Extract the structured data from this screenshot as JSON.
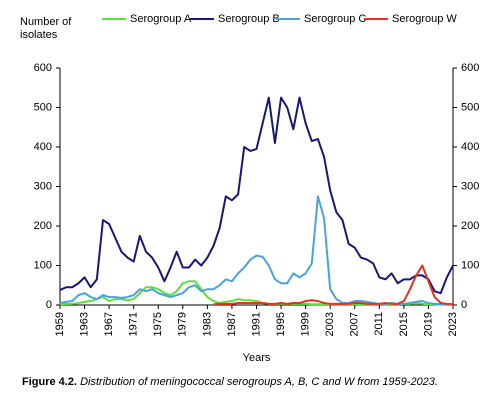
{
  "chart_data": {
    "type": "line",
    "y_label": "Number of isolates",
    "x_label": "Years",
    "caption_label": "Figure 4.2.",
    "caption_text": "Distribution of meningococcal serogroups A, B, C and W from 1959-2023.",
    "x": [
      1959,
      1960,
      1961,
      1962,
      1963,
      1964,
      1965,
      1966,
      1967,
      1968,
      1969,
      1970,
      1971,
      1972,
      1973,
      1974,
      1975,
      1976,
      1977,
      1978,
      1979,
      1980,
      1981,
      1982,
      1983,
      1984,
      1985,
      1986,
      1987,
      1988,
      1989,
      1990,
      1991,
      1992,
      1993,
      1994,
      1995,
      1996,
      1997,
      1998,
      1999,
      2000,
      2001,
      2002,
      2003,
      2004,
      2005,
      2006,
      2007,
      2008,
      2009,
      2010,
      2011,
      2012,
      2013,
      2014,
      2015,
      2016,
      2017,
      2018,
      2019,
      2020,
      2021,
      2022,
      2023
    ],
    "xlim": [
      1959,
      2023
    ],
    "xticks": [
      1959,
      1963,
      1967,
      1971,
      1975,
      1979,
      1983,
      1987,
      1991,
      1995,
      1999,
      2003,
      2007,
      2011,
      2015,
      2019,
      2023
    ],
    "ylim": [
      0,
      600
    ],
    "yticks": [
      0,
      100,
      200,
      300,
      400,
      500,
      600
    ],
    "y2lim": [
      0,
      600
    ],
    "y2ticks": [
      0,
      100,
      200,
      300,
      400,
      500,
      600
    ],
    "series": [
      {
        "name": "Serogroup A",
        "color": "#5ee03c",
        "values": [
          2,
          3,
          3,
          5,
          8,
          10,
          15,
          20,
          10,
          15,
          15,
          12,
          15,
          30,
          45,
          45,
          40,
          30,
          25,
          35,
          55,
          60,
          60,
          40,
          20,
          10,
          5,
          8,
          10,
          15,
          12,
          12,
          10,
          5,
          3,
          3,
          3,
          3,
          3,
          3,
          3,
          2,
          2,
          2,
          2,
          2,
          2,
          2,
          2,
          2,
          2,
          2,
          2,
          2,
          2,
          2,
          3,
          3,
          5,
          3,
          2,
          2,
          1,
          1,
          1
        ]
      },
      {
        "name": "Serogroup B",
        "color": "#17177a",
        "values": [
          38,
          45,
          45,
          55,
          70,
          45,
          65,
          215,
          205,
          170,
          135,
          120,
          110,
          175,
          135,
          120,
          95,
          60,
          95,
          135,
          95,
          95,
          115,
          100,
          120,
          150,
          195,
          275,
          265,
          280,
          400,
          390,
          395,
          460,
          525,
          410,
          525,
          500,
          445,
          525,
          460,
          415,
          420,
          375,
          290,
          235,
          215,
          155,
          145,
          120,
          115,
          105,
          70,
          65,
          80,
          55,
          65,
          65,
          75,
          75,
          65,
          35,
          30,
          70,
          100
        ]
      },
      {
        "name": "Serogroup C",
        "color": "#4aa3df",
        "values": [
          5,
          8,
          10,
          25,
          30,
          20,
          15,
          25,
          20,
          20,
          18,
          20,
          25,
          40,
          35,
          40,
          30,
          25,
          20,
          25,
          30,
          45,
          50,
          35,
          40,
          40,
          50,
          65,
          60,
          80,
          95,
          115,
          125,
          122,
          100,
          65,
          55,
          55,
          80,
          70,
          80,
          105,
          275,
          220,
          40,
          15,
          5,
          5,
          10,
          10,
          8,
          5,
          3,
          3,
          5,
          3,
          3,
          5,
          8,
          10,
          5,
          3,
          2,
          1,
          1
        ]
      },
      {
        "name": "Serogroup W",
        "color": "#e8311e",
        "values": [
          null,
          null,
          null,
          null,
          null,
          null,
          null,
          null,
          null,
          null,
          null,
          null,
          null,
          null,
          null,
          null,
          null,
          null,
          null,
          null,
          null,
          null,
          null,
          null,
          null,
          2,
          3,
          3,
          3,
          5,
          5,
          5,
          5,
          5,
          3,
          3,
          5,
          3,
          5,
          5,
          10,
          12,
          10,
          5,
          3,
          3,
          3,
          3,
          5,
          5,
          3,
          3,
          3,
          5,
          3,
          3,
          10,
          40,
          75,
          100,
          60,
          20,
          5,
          3,
          2
        ]
      }
    ],
    "legend": "top"
  }
}
